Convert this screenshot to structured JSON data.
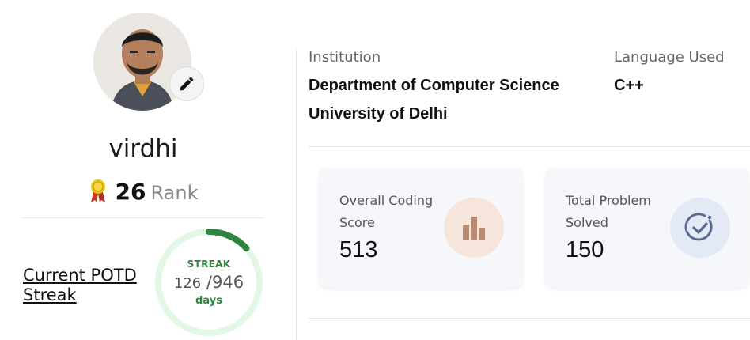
{
  "profile": {
    "username": "virdhi",
    "rank_value": "26",
    "rank_label": "Rank",
    "avatar_icon": "profile-photo",
    "edit_icon": "pencil-icon"
  },
  "streak": {
    "link_label": "Current POTD Streak",
    "label": "STREAK",
    "current": "126",
    "separator": " /",
    "total": "946",
    "unit": "days",
    "progress_fraction": 0.133,
    "ring_color": "#2e8540",
    "track_color": "#e3f7e6"
  },
  "info": {
    "institution_label": "Institution",
    "institution_line1": "Department of Computer Science",
    "institution_line2": "University of Delhi",
    "language_label": "Language Used",
    "language_value": "C++"
  },
  "cards": [
    {
      "title": "Overall Coding Score",
      "value": "513",
      "icon": "bar-chart-icon",
      "icon_bg": "#f6e5db",
      "icon_color": "#b98a72"
    },
    {
      "title": "Total Problem Solved",
      "value": "150",
      "icon": "check-circle-icon",
      "icon_bg": "#e4e9f6",
      "icon_color": "#5a6a94"
    }
  ]
}
